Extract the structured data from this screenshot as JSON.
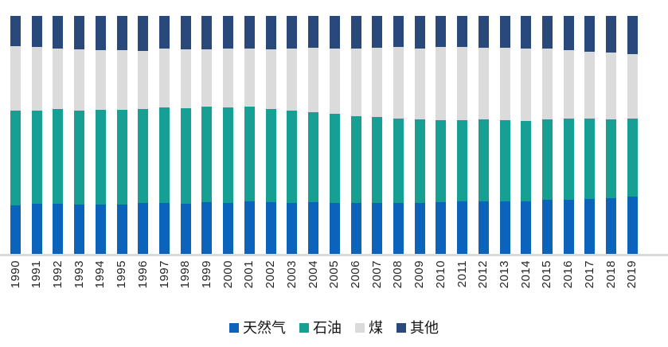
{
  "chart_data": {
    "type": "bar",
    "subtype": "stacked-100-percent",
    "title": "",
    "xlabel": "",
    "ylabel": "",
    "unit": "%",
    "ylim": [
      0,
      100
    ],
    "grid": false,
    "legend_position": "bottom",
    "axis_line_color": "#d9d9d9",
    "tick_label_color": "#262626",
    "categories": [
      "1990",
      "1991",
      "1992",
      "1993",
      "1994",
      "1995",
      "1996",
      "1997",
      "1998",
      "1999",
      "2000",
      "2001",
      "2002",
      "2003",
      "2004",
      "2005",
      "2006",
      "2007",
      "2008",
      "2009",
      "2010",
      "2011",
      "2012",
      "2013",
      "2014",
      "2015",
      "2016",
      "2017",
      "2018",
      "2019"
    ],
    "series": [
      {
        "name": "天然气",
        "color": "#0b63bc",
        "values": [
          20.5,
          21.1,
          21.1,
          20.8,
          20.6,
          20.8,
          21.5,
          21.3,
          21.1,
          21.7,
          21.5,
          22.0,
          21.7,
          21.5,
          21.7,
          21.5,
          21.3,
          21.5,
          21.5,
          21.3,
          21.9,
          22.2,
          22.2,
          22.2,
          22.0,
          22.6,
          22.8,
          23.1,
          23.5,
          24.0
        ]
      },
      {
        "name": "石油",
        "color": "#16a094",
        "values": [
          39.7,
          39.1,
          39.7,
          39.4,
          40.1,
          39.7,
          39.3,
          40.1,
          40.1,
          40.1,
          40.2,
          39.9,
          39.2,
          38.8,
          37.7,
          37.3,
          36.6,
          35.9,
          35.3,
          35.2,
          34.2,
          33.9,
          34.3,
          33.9,
          33.9,
          33.9,
          33.9,
          33.9,
          33.0,
          32.8
        ]
      },
      {
        "name": "煤",
        "color": "#dbdbdb",
        "values": [
          27.0,
          26.7,
          25.6,
          25.8,
          25.0,
          25.0,
          24.5,
          24.9,
          24.7,
          24.0,
          24.7,
          24.3,
          25.2,
          26.1,
          27.2,
          27.4,
          28.5,
          29.2,
          30.1,
          29.7,
          30.9,
          30.9,
          30.2,
          30.4,
          30.4,
          29.8,
          28.8,
          28.0,
          28.2,
          27.2
        ]
      },
      {
        "name": "其他",
        "color": "#28497a",
        "values": [
          12.8,
          13.1,
          13.6,
          14.0,
          14.3,
          14.5,
          14.7,
          13.7,
          14.1,
          14.2,
          13.6,
          13.8,
          13.9,
          13.6,
          13.4,
          13.8,
          13.6,
          13.4,
          13.1,
          13.8,
          13.0,
          13.0,
          13.3,
          13.5,
          13.7,
          13.7,
          14.5,
          15.0,
          15.3,
          16.0
        ]
      }
    ]
  }
}
